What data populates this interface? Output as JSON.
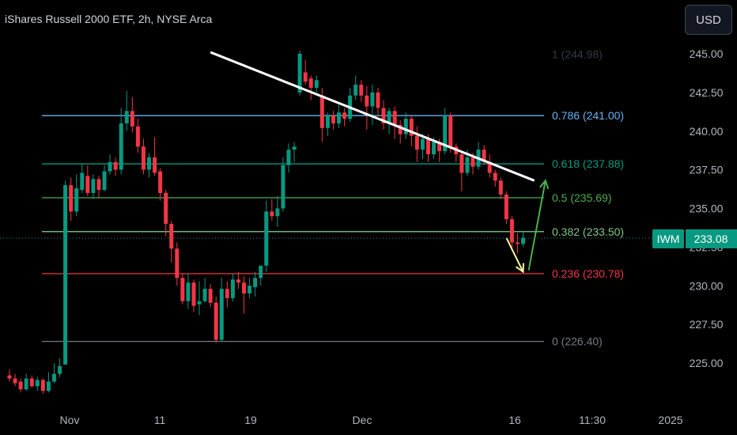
{
  "header": {
    "title": "iShares Russell 2000 ETF, 2h, NYSE Arca",
    "currency_button": "USD"
  },
  "price_tag": {
    "symbol": "IWM",
    "price": "233.08",
    "color": "#089981"
  },
  "chart_data": {
    "type": "candlestick",
    "y_axis": {
      "range": [
        223.0,
        247.5
      ],
      "ticks": [
        "225.00",
        "227.50",
        "230.00",
        "232.50",
        "235.00",
        "237.50",
        "240.00",
        "242.50",
        "245.00"
      ]
    },
    "x_axis": {
      "labels": [
        "Nov",
        "11",
        "19",
        "Dec",
        "16",
        "11:30",
        "2025"
      ]
    },
    "colors": {
      "up": "#089981",
      "down": "#f23645"
    },
    "fib_levels": [
      {
        "label": "1 (244.98)",
        "value": 244.98,
        "color": "#363a45"
      },
      {
        "label": "0.786 (241.00)",
        "value": 241.0,
        "color": "#64b5f6"
      },
      {
        "label": "0.618 (237.88)",
        "value": 237.88,
        "color": "#089981"
      },
      {
        "label": "0.5 (235.69)",
        "value": 235.69,
        "color": "#4caf50"
      },
      {
        "label": "0.382 (233.50)",
        "value": 233.5,
        "color": "#81c784"
      },
      {
        "label": "0.236 (230.78)",
        "value": 230.78,
        "color": "#f23645"
      },
      {
        "label": "0 (226.40)",
        "value": 226.4,
        "color": "#787b86"
      }
    ],
    "last_price": 233.08,
    "trendline": {
      "from": {
        "bar": 36,
        "price": 245.1
      },
      "to": {
        "bar": 94,
        "price": 236.8
      },
      "color": "#ffffff"
    },
    "projection": [
      {
        "color": "#fff59d",
        "from": {
          "bar": 89,
          "price": 233.1
        },
        "to": {
          "bar": 92,
          "price": 230.9
        }
      },
      {
        "color": "#4caf50",
        "from": {
          "bar": 93,
          "price": 231.0
        },
        "to": {
          "bar": 96,
          "price": 236.8
        }
      }
    ],
    "candles": [
      [
        224.2,
        224.0,
        224.6,
        223.8
      ],
      [
        224.0,
        223.7,
        224.3,
        223.5
      ],
      [
        223.8,
        223.3,
        224.0,
        223.1
      ],
      [
        223.3,
        224.0,
        224.3,
        223.2
      ],
      [
        224.0,
        223.5,
        224.2,
        223.4
      ],
      [
        223.5,
        223.9,
        224.1,
        223.2
      ],
      [
        223.9,
        223.2,
        224.0,
        223.0
      ],
      [
        223.2,
        223.8,
        224.4,
        223.1
      ],
      [
        223.8,
        224.3,
        225.0,
        223.7
      ],
      [
        224.3,
        224.8,
        225.3,
        224.1
      ],
      [
        224.9,
        236.5,
        236.8,
        232.7
      ],
      [
        236.5,
        234.8,
        237.0,
        234.2
      ],
      [
        234.8,
        236.3,
        237.2,
        234.5
      ],
      [
        236.2,
        237.3,
        237.9,
        236.0
      ],
      [
        237.1,
        236.0,
        237.8,
        235.8
      ],
      [
        236.0,
        236.9,
        237.2,
        235.6
      ],
      [
        236.9,
        236.2,
        237.1,
        235.7
      ],
      [
        236.2,
        237.4,
        237.8,
        236.1
      ],
      [
        237.4,
        238.0,
        238.5,
        237.2
      ],
      [
        238.0,
        237.5,
        238.3,
        237.1
      ],
      [
        237.5,
        240.5,
        241.5,
        237.2
      ],
      [
        240.5,
        241.3,
        242.6,
        240.0
      ],
      [
        241.3,
        240.3,
        242.2,
        239.9
      ],
      [
        240.3,
        239.0,
        240.8,
        238.6
      ],
      [
        239.0,
        237.5,
        239.5,
        237.2
      ],
      [
        237.5,
        238.3,
        238.6,
        237.0
      ],
      [
        238.3,
        237.3,
        239.6,
        237.1
      ],
      [
        237.4,
        236.0,
        237.6,
        235.5
      ],
      [
        236.0,
        234.0,
        236.2,
        233.2
      ],
      [
        234.0,
        232.4,
        234.2,
        231.5
      ],
      [
        232.4,
        230.5,
        232.8,
        230.0
      ],
      [
        230.5,
        229.0,
        230.8,
        228.8
      ],
      [
        229.0,
        230.2,
        230.8,
        228.5
      ],
      [
        230.2,
        228.7,
        230.4,
        228.3
      ],
      [
        228.8,
        229.0,
        230.3,
        228.1
      ],
      [
        229.0,
        229.8,
        230.5,
        228.9
      ],
      [
        229.8,
        228.9,
        230.1,
        228.6
      ],
      [
        228.9,
        226.5,
        229.3,
        226.3
      ],
      [
        226.5,
        229.8,
        230.5,
        226.4
      ],
      [
        229.8,
        229.2,
        230.3,
        228.6
      ],
      [
        229.2,
        230.4,
        230.8,
        229.0
      ],
      [
        230.4,
        230.2,
        230.9,
        229.8
      ],
      [
        230.2,
        229.5,
        230.6,
        228.2
      ],
      [
        229.5,
        230.0,
        230.5,
        229.2
      ],
      [
        229.9,
        230.5,
        230.9,
        229.3
      ],
      [
        230.5,
        231.3,
        231.0,
        230.0
      ],
      [
        231.3,
        234.8,
        235.5,
        230.9
      ],
      [
        234.8,
        234.5,
        235.6,
        234.2
      ],
      [
        234.5,
        235.0,
        235.8,
        233.8
      ],
      [
        235.0,
        237.8,
        238.3,
        234.8
      ],
      [
        237.8,
        238.8,
        239.2,
        237.3
      ],
      [
        238.8,
        239.0,
        239.3,
        238.0
      ],
      [
        242.5,
        245.0,
        245.2,
        242.3
      ],
      [
        243.8,
        243.2,
        244.6,
        243.0
      ],
      [
        243.4,
        242.8,
        243.6,
        242.0
      ],
      [
        242.8,
        243.3,
        243.6,
        242.5
      ],
      [
        242.3,
        240.2,
        242.8,
        239.3
      ],
      [
        240.2,
        241.0,
        241.2,
        239.7
      ],
      [
        241.0,
        240.5,
        241.3,
        240.1
      ],
      [
        240.5,
        241.2,
        241.7,
        240.2
      ],
      [
        241.2,
        240.8,
        241.5,
        240.3
      ],
      [
        240.8,
        242.3,
        242.8,
        240.6
      ],
      [
        242.3,
        243.0,
        243.6,
        242.0
      ],
      [
        243.0,
        242.3,
        243.3,
        241.9
      ],
      [
        242.3,
        241.6,
        242.9,
        240.1
      ],
      [
        241.6,
        242.5,
        243.0,
        240.4
      ],
      [
        242.5,
        241.5,
        242.8,
        241.0
      ],
      [
        241.5,
        240.5,
        242.0,
        240.1
      ],
      [
        240.5,
        241.3,
        241.5,
        239.8
      ],
      [
        241.3,
        240.4,
        241.6,
        239.5
      ],
      [
        240.4,
        239.8,
        240.7,
        239.2
      ],
      [
        239.8,
        240.8,
        241.2,
        239.5
      ],
      [
        240.8,
        239.7,
        241.0,
        239.0
      ],
      [
        239.7,
        238.8,
        240.3,
        238.0
      ],
      [
        238.8,
        239.5,
        239.8,
        238.2
      ],
      [
        239.5,
        238.5,
        239.8,
        238.0
      ],
      [
        238.5,
        239.3,
        239.6,
        238.2
      ],
      [
        239.3,
        238.7,
        239.5,
        238.0
      ],
      [
        238.7,
        241.0,
        241.5,
        238.5
      ],
      [
        241.0,
        239.0,
        241.2,
        238.6
      ],
      [
        239.0,
        238.5,
        239.2,
        238.0
      ],
      [
        238.5,
        237.3,
        238.6,
        236.1
      ],
      [
        237.3,
        238.3,
        238.8,
        237.1
      ],
      [
        238.3,
        237.7,
        238.6,
        237.2
      ],
      [
        237.7,
        238.8,
        239.3,
        237.5
      ],
      [
        238.8,
        238.0,
        239.1,
        237.8
      ],
      [
        238.0,
        237.3,
        238.5,
        237.0
      ],
      [
        237.3,
        236.8,
        237.5,
        236.4
      ],
      [
        236.8,
        235.9,
        237.0,
        235.6
      ],
      [
        235.9,
        234.3,
        236.1,
        234.0
      ],
      [
        234.3,
        232.8,
        234.5,
        232.3
      ],
      [
        232.8,
        232.7,
        233.4,
        232.1
      ],
      [
        232.7,
        233.1,
        233.5,
        232.5
      ]
    ]
  }
}
